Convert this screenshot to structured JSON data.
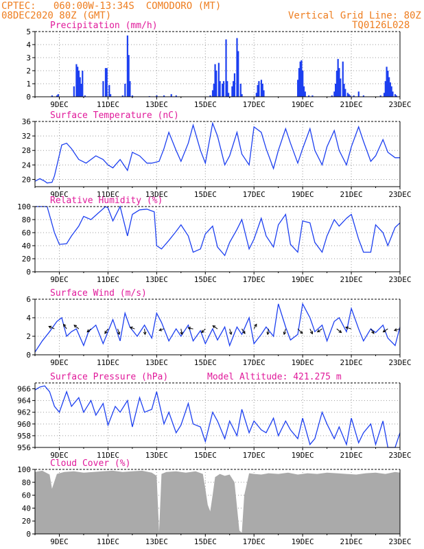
{
  "header": {
    "line1": "CPTEC:   060:00W-13:34S  COMODORO (MT)",
    "line2": "08DEC2020 80Z (GMT)",
    "vgrid": "Vertical Grid Line: 80Z",
    "code": "TQ0126L028"
  },
  "colors": {
    "header": "#ee7d1f",
    "title": "#e0199a",
    "series": "#1c3ff0",
    "cloud": "#aaaaaa",
    "wind": "#000000"
  },
  "x_tick_labels": [
    "9DEC",
    "11DEC",
    "13DEC",
    "15DEC",
    "17DEC",
    "19DEC",
    "21DEC",
    "23DEC"
  ],
  "chart_data": [
    {
      "type": "bar",
      "title": "Precipitation (mm/h)",
      "ylim": [
        0,
        5
      ],
      "yticks": [
        "0",
        "1",
        "2",
        "3",
        "4",
        "5"
      ],
      "x_days": [
        8.7,
        8.9,
        8.95,
        9.6,
        9.7,
        9.75,
        9.8,
        9.85,
        9.9,
        9.95,
        10.05,
        10.8,
        10.9,
        10.95,
        11.05,
        11.1,
        11.6,
        11.7,
        11.8,
        11.85,
        11.9,
        12.0,
        12.7,
        13.0,
        13.3,
        13.6,
        13.8,
        15.2,
        15.3,
        15.35,
        15.4,
        15.45,
        15.55,
        15.6,
        15.7,
        15.75,
        15.85,
        15.9,
        15.95,
        16.1,
        16.15,
        16.2,
        16.3,
        16.35,
        16.45,
        16.5,
        17.1,
        17.15,
        17.2,
        17.3,
        17.35,
        17.4,
        18.8,
        18.85,
        18.9,
        18.95,
        19.0,
        19.05,
        19.1,
        19.25,
        19.4,
        20.2,
        20.3,
        20.35,
        20.4,
        20.45,
        20.5,
        20.55,
        20.65,
        20.7,
        20.75,
        20.85,
        20.9,
        20.95,
        21.1,
        21.3,
        21.5,
        22.2,
        22.35,
        22.4,
        22.45,
        22.5,
        22.55,
        22.6,
        22.65,
        22.7,
        22.8,
        22.85
      ],
      "values": [
        0.1,
        0.1,
        0.2,
        0.8,
        2.5,
        2.3,
        2.0,
        1.5,
        1.0,
        2.0,
        0.1,
        1.2,
        2.2,
        2.2,
        0.9,
        0.2,
        0.1,
        1.0,
        4.7,
        3.2,
        1.2,
        0.1,
        0.05,
        0.1,
        0.1,
        0.2,
        0.1,
        0.1,
        0.5,
        1.0,
        2.5,
        2.0,
        2.6,
        1.2,
        1.0,
        1.2,
        4.4,
        1.2,
        0.3,
        0.8,
        1.2,
        1.8,
        4.5,
        3.5,
        1.0,
        0.2,
        0.3,
        0.9,
        1.2,
        1.3,
        1.0,
        0.5,
        1.3,
        2.2,
        2.7,
        2.8,
        2.0,
        0.8,
        0.4,
        0.1,
        0.1,
        0.1,
        0.4,
        1.0,
        2.0,
        2.9,
        2.2,
        1.4,
        2.7,
        1.0,
        0.6,
        0.3,
        0.2,
        0.1,
        0.1,
        0.4,
        0.1,
        0.1,
        0.3,
        1.2,
        2.3,
        2.0,
        1.5,
        1.1,
        0.8,
        0.4,
        0.2,
        0.1
      ]
    },
    {
      "type": "line",
      "title": "Surface Temperature (nC)",
      "ylim": [
        18,
        36
      ],
      "yticks": [
        "20",
        "24",
        "28",
        "32",
        "36"
      ],
      "x_days": [
        8.0,
        8.2,
        8.4,
        8.5,
        8.7,
        8.8,
        9.1,
        9.3,
        9.5,
        9.8,
        10.1,
        10.5,
        10.8,
        11.0,
        11.2,
        11.5,
        11.8,
        12.0,
        12.3,
        12.6,
        12.8,
        13.1,
        13.3,
        13.5,
        13.8,
        14.0,
        14.3,
        14.5,
        14.8,
        15.0,
        15.3,
        15.5,
        15.8,
        16.0,
        16.3,
        16.5,
        16.8,
        17.0,
        17.3,
        17.5,
        17.8,
        18.0,
        18.3,
        18.5,
        18.8,
        19.0,
        19.3,
        19.5,
        19.8,
        20.0,
        20.3,
        20.5,
        20.8,
        21.0,
        21.3,
        21.5,
        21.8,
        22.0,
        22.3,
        22.5,
        22.8,
        23.0
      ],
      "values": [
        19.5,
        20.2,
        19.5,
        19.0,
        19.2,
        21.0,
        29.5,
        30.0,
        28.5,
        25.5,
        24.5,
        26.5,
        25.5,
        24.0,
        23.2,
        25.5,
        22.5,
        27.5,
        26.5,
        24.5,
        24.5,
        25.0,
        28.5,
        33.0,
        28.0,
        25.0,
        30.0,
        35.0,
        28.0,
        24.5,
        35.5,
        32.0,
        24.0,
        26.5,
        33.0,
        27.0,
        24.0,
        34.5,
        33.0,
        28.5,
        23.0,
        28.0,
        34.0,
        30.0,
        24.5,
        28.5,
        34.0,
        28.0,
        24.0,
        29.0,
        33.5,
        28.0,
        24.0,
        29.0,
        34.5,
        30.5,
        25.0,
        26.5,
        31.0,
        27.5,
        26.0,
        26.0
      ]
    },
    {
      "type": "line",
      "title": "Relative Humidity (%)",
      "ylim": [
        0,
        100
      ],
      "yticks": [
        "0",
        "20",
        "40",
        "60",
        "80",
        "100"
      ],
      "x_days": [
        8.0,
        8.3,
        8.5,
        8.8,
        9.0,
        9.3,
        9.5,
        9.8,
        10.0,
        10.3,
        10.6,
        10.9,
        11.0,
        11.2,
        11.5,
        11.8,
        12.0,
        12.3,
        12.6,
        12.9,
        13.0,
        13.2,
        13.5,
        13.8,
        14.0,
        14.3,
        14.5,
        14.8,
        15.0,
        15.3,
        15.5,
        15.8,
        16.0,
        16.3,
        16.5,
        16.8,
        17.0,
        17.3,
        17.5,
        17.8,
        18.0,
        18.3,
        18.5,
        18.8,
        19.0,
        19.3,
        19.5,
        19.8,
        20.0,
        20.3,
        20.5,
        20.8,
        21.0,
        21.3,
        21.5,
        21.8,
        22.0,
        22.3,
        22.5,
        22.8,
        23.0
      ],
      "values": [
        100,
        100,
        100,
        60,
        42,
        43,
        55,
        70,
        85,
        80,
        90,
        100,
        98,
        78,
        100,
        55,
        88,
        95,
        96,
        92,
        40,
        35,
        48,
        62,
        72,
        55,
        30,
        35,
        58,
        70,
        38,
        25,
        45,
        65,
        80,
        35,
        50,
        82,
        55,
        38,
        72,
        88,
        42,
        30,
        78,
        75,
        45,
        30,
        55,
        80,
        70,
        82,
        88,
        50,
        30,
        30,
        72,
        60,
        40,
        68,
        75
      ]
    },
    {
      "type": "line",
      "title": "Surface Wind (m/s)",
      "ylim": [
        0,
        6
      ],
      "yticks": [
        "0",
        "2",
        "4",
        "6"
      ],
      "x_days": [
        8.0,
        8.3,
        8.6,
        8.9,
        9.1,
        9.3,
        9.5,
        9.7,
        10.0,
        10.2,
        10.5,
        10.8,
        11.0,
        11.2,
        11.5,
        11.7,
        11.9,
        12.2,
        12.5,
        12.8,
        13.0,
        13.2,
        13.5,
        13.8,
        14.0,
        14.3,
        14.5,
        14.8,
        15.0,
        15.3,
        15.5,
        15.8,
        16.0,
        16.3,
        16.5,
        16.8,
        17.0,
        17.3,
        17.5,
        17.8,
        18.0,
        18.3,
        18.5,
        18.8,
        19.0,
        19.3,
        19.5,
        19.8,
        20.0,
        20.3,
        20.5,
        20.8,
        21.0,
        21.3,
        21.5,
        21.8,
        22.0,
        22.3,
        22.5,
        22.8,
        23.0
      ],
      "values": [
        0.3,
        1.5,
        2.5,
        3.6,
        4.0,
        2.0,
        2.5,
        2.8,
        1.0,
        2.5,
        3.2,
        1.2,
        2.5,
        3.8,
        1.5,
        4.5,
        3.0,
        2.0,
        3.2,
        1.8,
        4.5,
        3.5,
        1.5,
        2.8,
        2.0,
        3.2,
        1.5,
        2.6,
        1.2,
        2.8,
        1.6,
        3.0,
        1.0,
        3.0,
        2.2,
        4.0,
        1.2,
        2.2,
        3.0,
        2.0,
        5.5,
        3.0,
        1.6,
        2.2,
        5.5,
        4.0,
        2.5,
        3.2,
        1.5,
        3.6,
        4.0,
        2.5,
        5.0,
        2.8,
        1.5,
        2.8,
        2.4,
        3.2,
        1.8,
        1.0,
        3.0
      ],
      "arrows": [
        {
          "x": 8.8,
          "u": -1.8,
          "v": 0.8
        },
        {
          "x": 9.3,
          "u": -1,
          "v": 1.5
        },
        {
          "x": 9.8,
          "u": -1.5,
          "v": 1.2
        },
        {
          "x": 10.3,
          "u": -1.2,
          "v": -1
        },
        {
          "x": 11.0,
          "u": -1,
          "v": -1.5
        },
        {
          "x": 11.4,
          "u": 0.5,
          "v": -1.8
        },
        {
          "x": 12.1,
          "u": -1.5,
          "v": 0.5
        },
        {
          "x": 12.5,
          "u": 0.2,
          "v": -1.8
        },
        {
          "x": 13.3,
          "u": -1.5,
          "v": -0.5
        },
        {
          "x": 14.0,
          "u": 0.3,
          "v": -1.8
        },
        {
          "x": 14.5,
          "u": -1.6,
          "v": 0.3
        },
        {
          "x": 15.0,
          "u": -1.2,
          "v": -1.2
        },
        {
          "x": 15.5,
          "u": -1.5,
          "v": 1
        },
        {
          "x": 16.0,
          "u": 0.5,
          "v": -1.8
        },
        {
          "x": 16.5,
          "u": 1,
          "v": -1.5
        },
        {
          "x": 17.0,
          "u": 0.8,
          "v": 1.5
        },
        {
          "x": 17.6,
          "u": -0.3,
          "v": -1.8
        },
        {
          "x": 18.3,
          "u": -0.5,
          "v": -1.8
        },
        {
          "x": 18.8,
          "u": 1.5,
          "v": -1.5
        },
        {
          "x": 19.3,
          "u": 0.8,
          "v": -1.6
        },
        {
          "x": 19.8,
          "u": -1.5,
          "v": -1
        },
        {
          "x": 20.4,
          "u": 1.5,
          "v": -1.2
        },
        {
          "x": 21.0,
          "u": -1.8,
          "v": 0.5
        },
        {
          "x": 21.8,
          "u": 1,
          "v": -1.5
        },
        {
          "x": 22.5,
          "u": -1.5,
          "v": -1
        },
        {
          "x": 23.0,
          "u": -1.8,
          "v": -0.5
        }
      ]
    },
    {
      "type": "line",
      "title": "Surface Pressure (hPa)",
      "annotation": "Model Altitude: 421.275 m",
      "ylim": [
        956,
        967
      ],
      "yticks": [
        "956",
        "958",
        "960",
        "962",
        "964",
        "966"
      ],
      "x_days": [
        8.0,
        8.2,
        8.4,
        8.6,
        8.8,
        9.0,
        9.3,
        9.5,
        9.8,
        10.0,
        10.3,
        10.5,
        10.8,
        11.0,
        11.3,
        11.5,
        11.8,
        12.0,
        12.3,
        12.5,
        12.8,
        13.0,
        13.3,
        13.5,
        13.8,
        14.0,
        14.3,
        14.5,
        14.8,
        15.0,
        15.3,
        15.5,
        15.8,
        16.0,
        16.3,
        16.5,
        16.8,
        17.0,
        17.3,
        17.5,
        17.8,
        18.0,
        18.3,
        18.5,
        18.8,
        19.0,
        19.3,
        19.5,
        19.8,
        20.0,
        20.3,
        20.5,
        20.8,
        21.0,
        21.3,
        21.5,
        21.8,
        22.0,
        22.3,
        22.5,
        22.8,
        23.0
      ],
      "values": [
        965.8,
        966.3,
        966.5,
        965.5,
        963.0,
        962.0,
        965.5,
        963.0,
        964.5,
        962.0,
        964.0,
        961.5,
        963.5,
        959.8,
        963.0,
        962.0,
        964.0,
        959.5,
        964.5,
        962.0,
        962.5,
        965.5,
        960.0,
        962.0,
        958.5,
        959.8,
        963.5,
        960.0,
        959.5,
        957.0,
        962.0,
        960.5,
        957.5,
        960.5,
        958.0,
        962.5,
        958.5,
        960.5,
        959.0,
        958.5,
        961.0,
        958.0,
        960.5,
        959.0,
        957.5,
        961.0,
        956.5,
        957.5,
        962.0,
        960.0,
        957.5,
        959.5,
        956.5,
        961.0,
        956.8,
        958.5,
        960.0,
        956.5,
        960.5,
        956.0,
        956.0,
        958.5
      ]
    },
    {
      "type": "area",
      "title": "Cloud Cover (%)",
      "ylim": [
        0,
        100
      ],
      "yticks": [
        "0",
        "20",
        "40",
        "60",
        "80",
        "100"
      ],
      "x_days": [
        8.0,
        8.3,
        8.6,
        8.7,
        8.9,
        9.2,
        9.6,
        10.0,
        10.4,
        10.8,
        11.2,
        11.6,
        12.0,
        12.4,
        12.8,
        13.0,
        13.1,
        13.2,
        13.4,
        13.8,
        14.2,
        14.6,
        14.9,
        15.0,
        15.1,
        15.2,
        15.3,
        15.4,
        15.6,
        15.8,
        16.0,
        16.2,
        16.4,
        16.5,
        16.6,
        16.8,
        17.0,
        17.3,
        17.6,
        18.0,
        18.4,
        18.8,
        19.2,
        19.6,
        20.0,
        20.4,
        20.8,
        21.2,
        21.6,
        22.0,
        22.4,
        22.8,
        23.0
      ],
      "values": [
        96,
        98,
        92,
        70,
        93,
        96,
        97,
        95,
        96,
        97,
        98,
        96,
        97,
        98,
        95,
        90,
        3,
        93,
        96,
        97,
        95,
        97,
        93,
        70,
        45,
        35,
        60,
        88,
        93,
        90,
        92,
        80,
        5,
        2,
        60,
        94,
        93,
        92,
        94,
        93,
        95,
        92,
        94,
        93,
        95,
        94,
        93,
        92,
        94,
        95,
        93,
        96,
        95
      ]
    }
  ]
}
